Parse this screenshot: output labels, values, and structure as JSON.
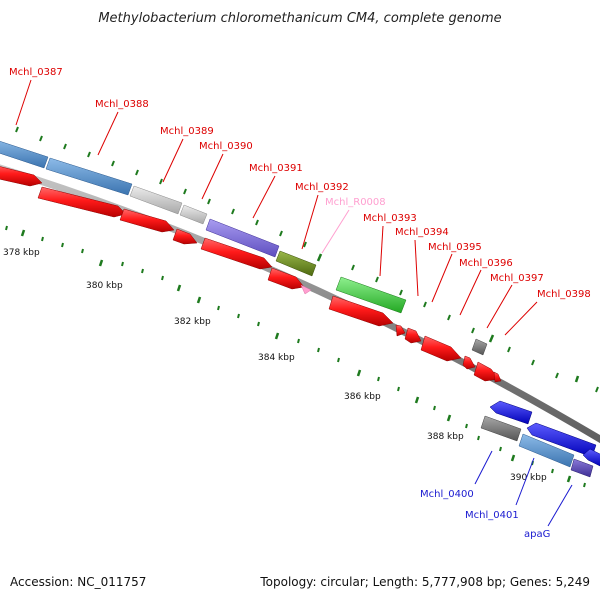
{
  "title": "Methylobacterium chloromethanicum CM4, complete genome",
  "footer": {
    "accession": "Accession: NC_011757",
    "summary": "Topology: circular; Length: 5,777,908 bp; Genes: 5,249"
  },
  "colors": {
    "backbone": "#8a8a8a",
    "tick": "#1e7a1e",
    "cds": "#ff1a1a",
    "rna": "#ff9fd0",
    "label_red": "#dd0000",
    "label_pink": "#ff9fd0",
    "label_blue": "#1a1ad0"
  },
  "scale_labels": [
    "378 kbp",
    "380 kbp",
    "382 kbp",
    "384 kbp",
    "386 kbp",
    "388 kbp",
    "390 kbp"
  ],
  "gene_labels": [
    {
      "id": "Mchl_0387",
      "color": "#dd0000"
    },
    {
      "id": "Mchl_0388",
      "color": "#dd0000"
    },
    {
      "id": "Mchl_0389",
      "color": "#dd0000"
    },
    {
      "id": "Mchl_0390",
      "color": "#dd0000"
    },
    {
      "id": "Mchl_0391",
      "color": "#dd0000"
    },
    {
      "id": "Mchl_0392",
      "color": "#dd0000"
    },
    {
      "id": "Mchl_R0008",
      "color": "#ff9fd0"
    },
    {
      "id": "Mchl_0393",
      "color": "#dd0000"
    },
    {
      "id": "Mchl_0394",
      "color": "#dd0000"
    },
    {
      "id": "Mchl_0395",
      "color": "#dd0000"
    },
    {
      "id": "Mchl_0396",
      "color": "#dd0000"
    },
    {
      "id": "Mchl_0397",
      "color": "#dd0000"
    },
    {
      "id": "Mchl_0398",
      "color": "#dd0000"
    },
    {
      "id": "Mchl_0400",
      "color": "#1a1ad0"
    },
    {
      "id": "Mchl_0401",
      "color": "#1a1ad0"
    },
    {
      "id": "apaG",
      "color": "#1a1ad0"
    }
  ],
  "cog_colors": {
    "steel_blue": "#4a86c6",
    "silver": "#c4c4c4",
    "violet": "#7b6ad8",
    "olive": "#6e8e1e",
    "green": "#3fd43f",
    "grey": "#777777",
    "blue": "#1515f0",
    "indigo": "#5a4ab2"
  }
}
